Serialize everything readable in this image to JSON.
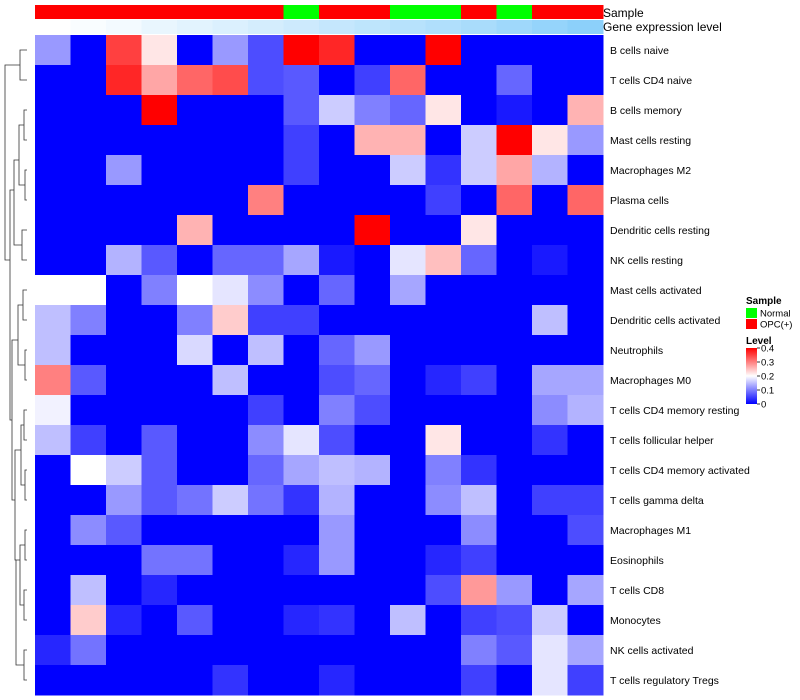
{
  "chart_data": {
    "type": "heatmap",
    "title": "",
    "annotation_tracks": [
      {
        "name": "Sample",
        "kind": "categorical"
      },
      {
        "name": "Gene expression level",
        "kind": "gradient"
      }
    ],
    "columns": 16,
    "column_sample": [
      "OPC(+)",
      "OPC(+)",
      "OPC(+)",
      "OPC(+)",
      "OPC(+)",
      "OPC(+)",
      "OPC(+)",
      "Normal",
      "OPC(+)",
      "OPC(+)",
      "Normal",
      "Normal",
      "OPC(+)",
      "Normal",
      "OPC(+)",
      "OPC(+)"
    ],
    "column_expression_level": [
      0.0,
      0.05,
      0.1,
      0.18,
      0.24,
      0.3,
      0.36,
      0.42,
      0.48,
      0.54,
      0.6,
      0.66,
      0.72,
      0.8,
      0.88,
      0.96
    ],
    "rows": [
      "B cells naive",
      "T cells CD4 naive",
      "B cells memory",
      "Mast cells resting",
      "Macrophages M2",
      "Plasma cells",
      "Dendritic cells resting",
      "NK cells resting",
      "Mast cells activated",
      "Dendritic cells activated",
      "Neutrophils",
      "Macrophages M0",
      "T cells CD4 memory resting",
      "T cells follicular helper",
      "T cells CD4 memory activated",
      "T cells gamma delta",
      "Macrophages M1",
      "Eosinophils",
      "T cells CD8",
      "Monocytes",
      "NK cells activated",
      "T cells regulatory  Tregs"
    ],
    "values": [
      [
        0.12,
        0.0,
        0.35,
        0.22,
        0.0,
        0.12,
        0.06,
        0.4,
        0.37,
        0.0,
        0.0,
        0.4,
        0.0,
        0.0,
        0.0,
        0.0
      ],
      [
        0.0,
        0.0,
        0.37,
        0.27,
        0.32,
        0.34,
        0.06,
        0.07,
        0.0,
        0.05,
        0.32,
        0.0,
        0.0,
        0.08,
        0.0,
        0.0
      ],
      [
        0.0,
        0.0,
        0.0,
        0.4,
        0.0,
        0.0,
        0.0,
        0.07,
        0.16,
        0.1,
        0.08,
        0.22,
        0.0,
        0.02,
        0.0,
        0.26
      ],
      [
        0.0,
        0.0,
        0.0,
        0.0,
        0.0,
        0.0,
        0.0,
        0.05,
        0.0,
        0.26,
        0.26,
        0.0,
        0.16,
        0.4,
        0.22,
        0.12
      ],
      [
        0.0,
        0.0,
        0.12,
        0.0,
        0.0,
        0.0,
        0.0,
        0.05,
        0.0,
        0.0,
        0.16,
        0.04,
        0.16,
        0.27,
        0.14,
        0.0
      ],
      [
        0.0,
        0.0,
        0.0,
        0.0,
        0.0,
        0.0,
        0.3,
        0.0,
        0.0,
        0.0,
        0.0,
        0.05,
        0.0,
        0.32,
        0.0,
        0.32
      ],
      [
        0.0,
        0.0,
        0.0,
        0.0,
        0.26,
        0.0,
        0.0,
        0.0,
        0.0,
        0.4,
        0.0,
        0.0,
        0.22,
        0.0,
        0.0,
        0.0
      ],
      [
        0.0,
        0.0,
        0.14,
        0.07,
        0.0,
        0.08,
        0.08,
        0.13,
        0.02,
        0.0,
        0.18,
        0.25,
        0.08,
        0.0,
        0.02,
        0.0
      ],
      [
        0.2,
        0.2,
        0.0,
        0.1,
        0.2,
        0.18,
        0.11,
        0.0,
        0.08,
        0.0,
        0.13,
        0.0,
        0.0,
        0.0,
        0.0,
        0.0
      ],
      [
        0.15,
        0.1,
        0.0,
        0.0,
        0.1,
        0.24,
        0.05,
        0.05,
        0.0,
        0.0,
        0.0,
        0.0,
        0.0,
        0.0,
        0.15,
        0.0
      ],
      [
        0.15,
        0.0,
        0.0,
        0.0,
        0.17,
        0.0,
        0.15,
        0.0,
        0.08,
        0.12,
        0.0,
        0.0,
        0.0,
        0.0,
        0.0,
        0.0
      ],
      [
        0.3,
        0.07,
        0.0,
        0.0,
        0.0,
        0.15,
        0.0,
        0.0,
        0.06,
        0.08,
        0.0,
        0.03,
        0.05,
        0.0,
        0.13,
        0.13
      ],
      [
        0.19,
        0.0,
        0.0,
        0.0,
        0.0,
        0.0,
        0.05,
        0.0,
        0.1,
        0.06,
        0.0,
        0.0,
        0.0,
        0.0,
        0.11,
        0.14
      ],
      [
        0.15,
        0.05,
        0.0,
        0.07,
        0.0,
        0.0,
        0.11,
        0.18,
        0.06,
        0.0,
        0.0,
        0.22,
        0.0,
        0.0,
        0.04,
        0.0
      ],
      [
        0.0,
        0.2,
        0.16,
        0.07,
        0.0,
        0.0,
        0.08,
        0.13,
        0.15,
        0.14,
        0.0,
        0.1,
        0.04,
        0.0,
        0.0,
        0.0
      ],
      [
        0.0,
        0.0,
        0.12,
        0.07,
        0.09,
        0.16,
        0.09,
        0.04,
        0.14,
        0.0,
        0.0,
        0.11,
        0.15,
        0.0,
        0.05,
        0.05
      ],
      [
        0.0,
        0.11,
        0.07,
        0.0,
        0.0,
        0.0,
        0.0,
        0.0,
        0.12,
        0.0,
        0.0,
        0.0,
        0.11,
        0.0,
        0.0,
        0.06
      ],
      [
        0.0,
        0.0,
        0.0,
        0.09,
        0.09,
        0.0,
        0.0,
        0.03,
        0.12,
        0.0,
        0.0,
        0.03,
        0.05,
        0.0,
        0.0,
        0.0
      ],
      [
        0.0,
        0.15,
        0.0,
        0.03,
        0.0,
        0.0,
        0.0,
        0.0,
        0.0,
        0.0,
        0.0,
        0.06,
        0.28,
        0.12,
        0.0,
        0.13
      ],
      [
        0.0,
        0.24,
        0.03,
        0.0,
        0.07,
        0.0,
        0.0,
        0.03,
        0.04,
        0.0,
        0.15,
        0.0,
        0.05,
        0.06,
        0.16,
        0.0
      ],
      [
        0.03,
        0.09,
        0.0,
        0.0,
        0.0,
        0.0,
        0.0,
        0.0,
        0.0,
        0.0,
        0.0,
        0.0,
        0.1,
        0.07,
        0.18,
        0.13
      ],
      [
        0.0,
        0.0,
        0.0,
        0.0,
        0.0,
        0.04,
        0.0,
        0.0,
        0.03,
        0.0,
        0.0,
        0.0,
        0.05,
        0.0,
        0.18,
        0.05
      ]
    ],
    "color_scale": {
      "low": "#0000ff",
      "mid": "#ffffff",
      "high": "#ff0000",
      "min": 0,
      "max": 0.4,
      "mid_value": 0.2
    },
    "legend": {
      "sample_title": "Sample",
      "sample_entries": [
        {
          "label": "Normal",
          "color": "#00ff00"
        },
        {
          "label": "OPC(+)",
          "color": "#ff0000"
        }
      ],
      "level_title": "Level",
      "level_ticks": [
        "0.4",
        "0.3",
        "0.2",
        "0.1",
        "0"
      ],
      "level_tick_values": [
        0.4,
        0.3,
        0.2,
        0.1,
        0.0
      ]
    },
    "expression_gradient": {
      "start": "#ffffff",
      "end": "#87cefa"
    },
    "row_dendrogram": true,
    "grid": false,
    "legend_position": "right"
  }
}
